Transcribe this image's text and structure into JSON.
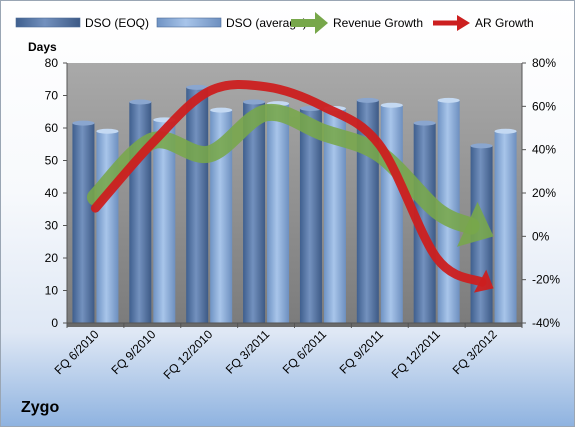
{
  "company": "Zygo",
  "chart_data": {
    "type": "bar",
    "categories": [
      "FQ 6/2010",
      "FQ 9/2010",
      "FQ 12/2010",
      "FQ 3/2011",
      "FQ 6/2011",
      "FQ 9/2011",
      "FQ 12/2011",
      "FQ 3/2012"
    ],
    "series": [
      {
        "name": "DSO (EOQ)",
        "axis": "left",
        "kind": "bar",
        "values": [
          61.5,
          68,
          72.5,
          68,
          66,
          68.5,
          61.5,
          54.5
        ]
      },
      {
        "name": "DSO (average)",
        "axis": "left",
        "kind": "bar",
        "values": [
          59,
          62.5,
          65.5,
          67.5,
          66,
          67,
          68.5,
          59
        ]
      },
      {
        "name": "Revenue Growth",
        "axis": "right",
        "kind": "line",
        "values": [
          18,
          44,
          38,
          57,
          48,
          38,
          12,
          0
        ]
      },
      {
        "name": "AR Growth",
        "axis": "right",
        "kind": "line",
        "values": [
          13,
          43,
          67,
          69,
          60,
          42,
          -10,
          -24
        ]
      }
    ],
    "ylabel": "Days",
    "ylim": [
      0,
      80
    ],
    "yticks": [
      0,
      10,
      20,
      30,
      40,
      50,
      60,
      70,
      80
    ],
    "y2lim": [
      -40,
      80
    ],
    "y2ticks": [
      "-40%",
      "-20%",
      "0%",
      "20%",
      "40%",
      "60%",
      "80%"
    ],
    "y2values": [
      -40,
      -20,
      0,
      20,
      40,
      60,
      80
    ],
    "legend_position": "top",
    "grid": false,
    "colors": {
      "bar_eoq": "#5b7aa8",
      "bar_avg": "#8fb1dc",
      "plot_bg": "#8c8c8c",
      "revenue_line": "#77a74a",
      "ar_line": "#cc1f1f"
    }
  }
}
